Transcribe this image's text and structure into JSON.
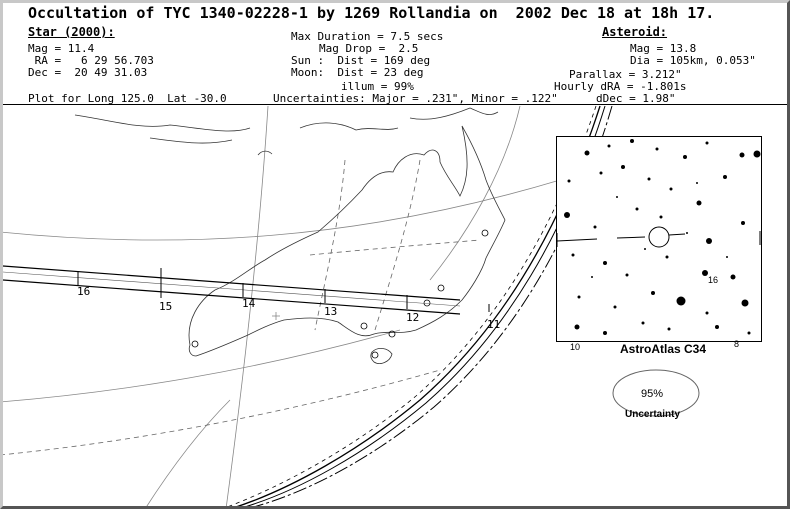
{
  "title": "Occultation of TYC 1340-02228-1 by 1269 Rollandia on  2002 Dec 18 at 18h 17.",
  "star": {
    "heading": "Star (2000):",
    "mag": "Mag = 11.4",
    "ra": " RA =   6 29 56.703",
    "dec": "Dec =  20 49 31.03"
  },
  "event": {
    "max_duration": "Max Duration = 7.5 secs",
    "mag_drop": "Mag Drop =  2.5",
    "sun": "Sun :  Dist = 169 deg",
    "moon": "Moon:  Dist = 23 deg",
    "illum": "illum = 99%"
  },
  "asteroid": {
    "heading": "Asteroid:",
    "mag": "Mag = 13.8",
    "dia": "Dia = 105km, 0.053\"",
    "parallax": "Parallax = 3.212\"",
    "hourly_dra": "Hourly dRA = -1.801s",
    "ddec": "dDec = 1.98\""
  },
  "plot_for": "Plot for Long 125.0  Lat -30.0",
  "uncertainties": "Uncertainties: Major = .231\", Minor = .122\"",
  "path_hour_labels": [
    "16",
    "15",
    "14",
    "13",
    "12",
    "11"
  ],
  "star_chart": {
    "label": "AstroAtlas C34",
    "corner_labels": [
      "10",
      "8"
    ],
    "star_label": "16"
  },
  "uncertainty_ellipse": {
    "percent": "95%",
    "label": "Uncertainty"
  }
}
